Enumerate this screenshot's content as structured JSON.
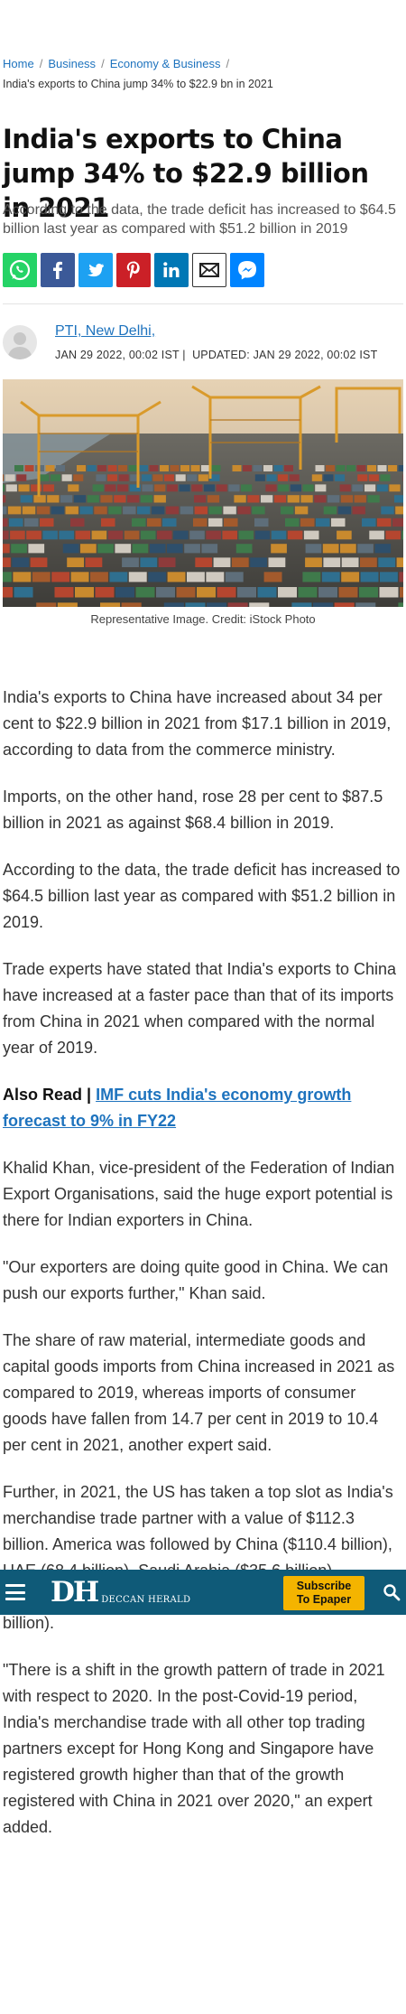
{
  "breadcrumb": {
    "items": [
      "Home",
      "Business",
      "Economy & Business"
    ],
    "current": "India's exports to China jump 34% to $22.9 bn in 2021"
  },
  "article": {
    "title": "India's exports to China jump 34% to $22.9 billion in 2021",
    "subtitle": "According to the data, the trade deficit has increased to $64.5 billion last year as compared with $51.2 billion in 2019",
    "author": "PTI, New Delhi,",
    "published": "JAN 29 2022, 00:02 IST",
    "updated": "UPDATED: JAN 29 2022, 00:02 IST",
    "image_caption": "Representative Image. Credit: iStock Photo",
    "paragraphs": [
      "India's exports to China have increased about 34 per cent to $22.9 billion in 2021 from $17.1 billion in 2019, according to data from the commerce ministry.",
      "Imports, on the other hand, rose 28 per cent to $87.5 billion in 2021 as against $68.4 billion in 2019.",
      "According to the data, the trade deficit has increased to $64.5 billion last year as compared with $51.2 billion in 2019.",
      "Trade experts have stated that India's exports to China have increased at a faster pace than that of its imports from China in 2021 when compared with the normal year of 2019."
    ],
    "also_read_label": "Also Read |",
    "also_read_link": "IMF cuts India's economy growth forecast to 9% in FY22",
    "paragraphs2": [
      "Khalid Khan, vice-president of the Federation of Indian Export Organisations, said the huge export potential is there for Indian exporters in China.",
      "\"Our exporters are doing quite good in China. We can push our exports further,\" Khan said.",
      "The share of raw material, intermediate goods and capital goods imports from China increased in 2021 as compared to 2019, whereas imports of consumer goods have fallen from 14.7 per cent in 2019 to 10.4 per cent in 2021, another expert said.",
      "Further, in 2021, the US has taken a top slot as India's merchandise trade partner with a value of $112.3 billion. America was followed by China ($110.4 billion), UAE (68.4 billion), Saudi Arabia ($35.6 billion), Switzerland ($30.8 billion), and Hong Kong ($29.5 billion).",
      "\"There is a shift in the growth pattern of trade in 2021 with respect to 2020. In the post-Covid-19 period, India's merchandise trade with all other top trading partners except for Hong Kong and Singapore have registered growth higher than that of the growth registered with China in 2021 over 2020,\" an expert added."
    ]
  },
  "share": {
    "icons": [
      "whatsapp-icon",
      "facebook-icon",
      "twitter-icon",
      "pinterest-icon",
      "linkedin-icon",
      "email-icon",
      "messenger-icon"
    ],
    "colors": {
      "whatsapp": "#25d366",
      "facebook": "#3b5998",
      "twitter": "#1da1f2",
      "pinterest": "#cb2027",
      "linkedin": "#0077b5",
      "email": "#333333",
      "messenger": "#0084ff"
    }
  },
  "sticky_header": {
    "logo_text": "DH",
    "logo_name": "DECCAN HERALD",
    "epaper_line1": "Subscribe",
    "epaper_line2": "To Epaper",
    "background": "#0f5a78",
    "epaper_color": "#f4b400"
  },
  "colors": {
    "link": "#1e73be",
    "text": "#333333"
  }
}
